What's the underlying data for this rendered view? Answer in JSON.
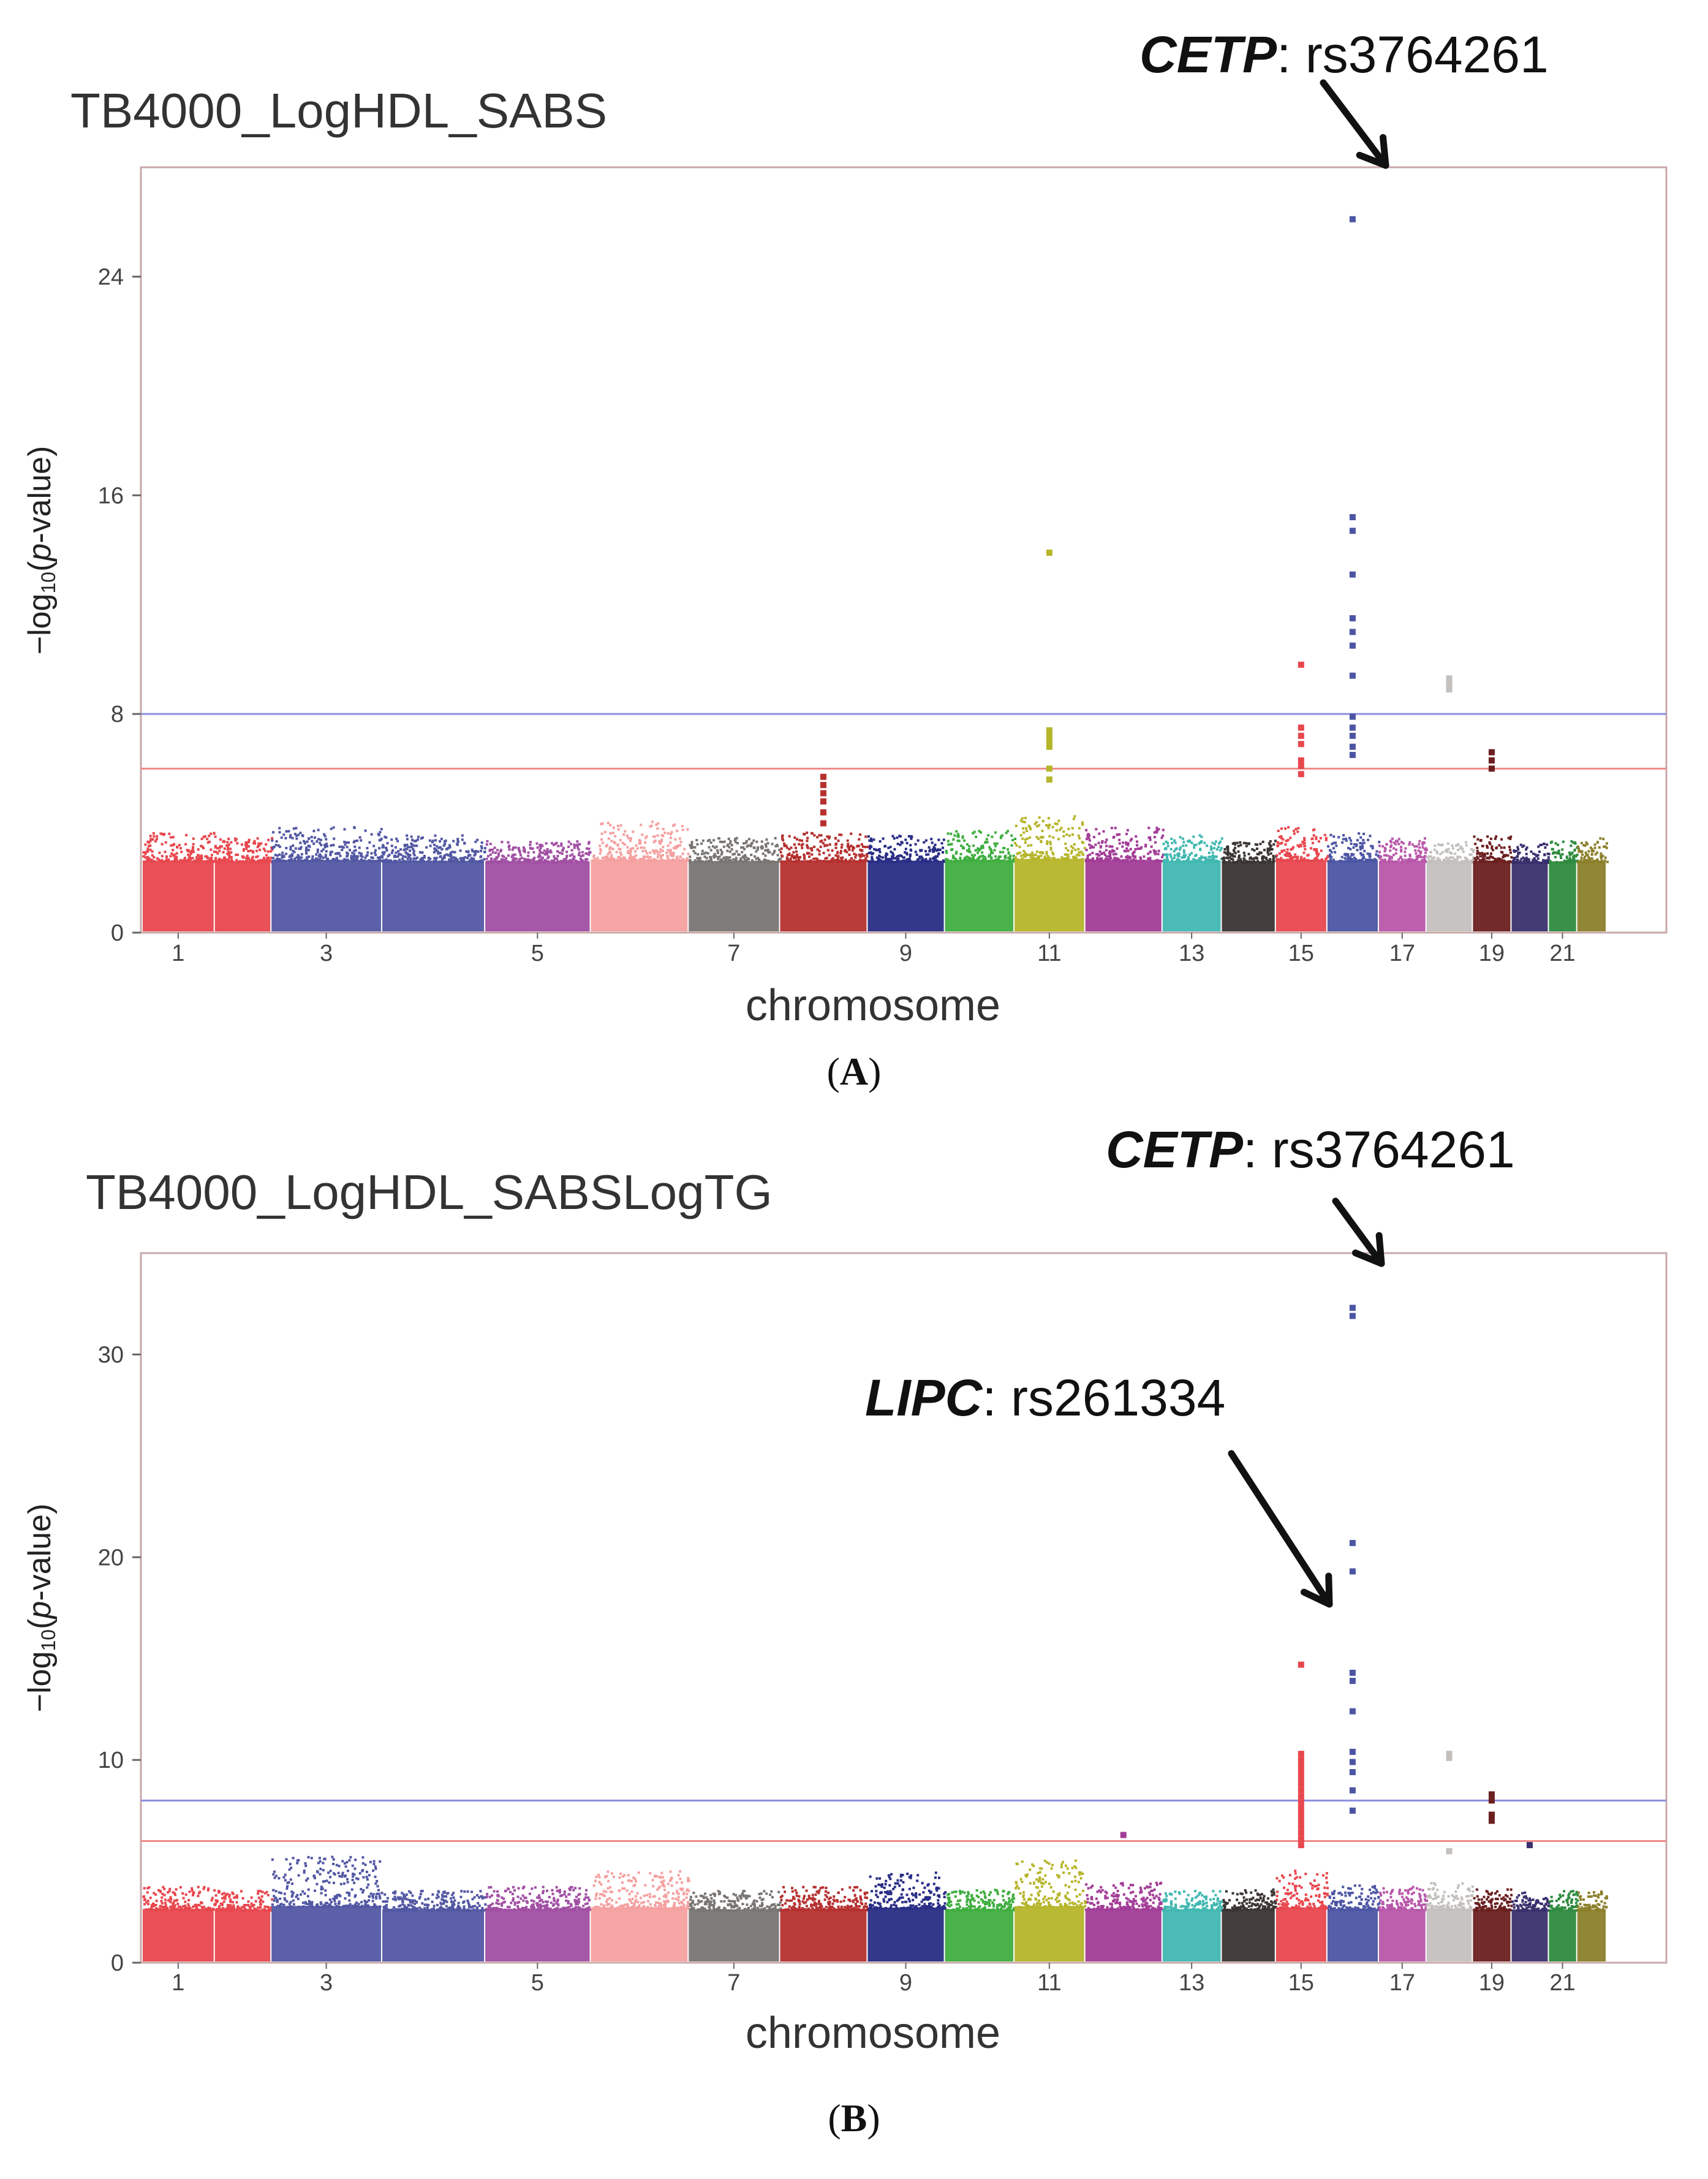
{
  "chart_data": [
    {
      "type": "scatter",
      "title": "TB4000_LogHDL_SABS",
      "panel_label": "A",
      "xlabel": "chromosome",
      "ylabel_prefix": "−log",
      "ylabel_sub": "10",
      "ylabel_open": "(",
      "ylabel_italic": "p",
      "ylabel_suffix": "-value)",
      "ylim": [
        0,
        28
      ],
      "yticks": [
        0,
        8,
        16,
        24
      ],
      "xtick_labels": [
        "1",
        "3",
        "5",
        "7",
        "9",
        "11",
        "13",
        "15",
        "17",
        "19",
        "21"
      ],
      "thresholds": [
        {
          "name": "genome-wide significance",
          "value": 8.0,
          "color": "#8e8ee0"
        },
        {
          "name": "suggestive",
          "value": 6.0,
          "color": "#f08a8a"
        }
      ],
      "chromosome_background_max": [
        3.7,
        3.5,
        3.9,
        3.6,
        3.4,
        4.1,
        3.5,
        3.7,
        3.6,
        3.8,
        4.3,
        3.9,
        3.6,
        3.4,
        3.9,
        3.7,
        3.5,
        3.4,
        3.6,
        3.3,
        3.4,
        3.5
      ],
      "highlight_points": [
        {
          "chromosome": 8,
          "values": [
            5.7,
            5.4,
            5.1,
            4.8,
            4.4,
            4.0
          ]
        },
        {
          "chromosome": 11,
          "values": [
            13.9,
            7.4,
            7.2,
            7.0,
            6.8,
            6.0,
            5.6
          ]
        },
        {
          "chromosome": 15,
          "values": [
            9.8,
            7.5,
            7.2,
            6.9,
            6.3,
            6.1,
            5.8
          ]
        },
        {
          "chromosome": 16,
          "values": [
            26.1,
            15.2,
            14.7,
            13.1,
            11.5,
            11.0,
            10.5,
            9.4,
            7.9,
            7.5,
            7.2,
            6.8,
            6.5
          ]
        },
        {
          "chromosome": 18,
          "values": [
            9.3,
            9.2,
            9.1,
            9.0,
            8.9
          ]
        },
        {
          "chromosome": 19,
          "values": [
            6.6,
            6.3,
            6.0
          ]
        }
      ],
      "annotations": [
        {
          "gene": "CETP",
          "snp": ": rs3764261",
          "chromosome": 16,
          "value": 26.1
        }
      ]
    },
    {
      "type": "scatter",
      "title": "TB4000_LogHDL_SABSLogTG",
      "panel_label": "B",
      "xlabel": "chromosome",
      "ylabel_prefix": "−log",
      "ylabel_sub": "10",
      "ylabel_open": "(",
      "ylabel_italic": "p",
      "ylabel_suffix": "-value)",
      "ylim": [
        0,
        35
      ],
      "yticks": [
        0,
        10,
        20,
        30
      ],
      "xtick_labels": [
        "1",
        "3",
        "5",
        "7",
        "9",
        "11",
        "13",
        "15",
        "17",
        "19",
        "21"
      ],
      "thresholds": [
        {
          "name": "genome-wide significance",
          "value": 8.0,
          "color": "#8e8ee0"
        },
        {
          "name": "suggestive",
          "value": 6.0,
          "color": "#f08a8a"
        }
      ],
      "chromosome_background_max": [
        3.8,
        3.6,
        5.3,
        3.6,
        3.8,
        4.6,
        3.6,
        3.8,
        4.5,
        3.7,
        5.2,
        4.0,
        3.6,
        3.7,
        4.6,
        3.9,
        3.8,
        4.0,
        3.7,
        3.6,
        3.6,
        3.6
      ],
      "highlight_points": [
        {
          "chromosome": 12,
          "values": [
            6.3
          ]
        },
        {
          "chromosome": 15,
          "values": [
            14.7,
            10.3,
            10.0,
            9.7,
            9.4,
            9.1,
            8.8,
            8.5,
            8.2,
            7.9,
            7.6,
            7.3,
            7.0,
            6.7,
            6.4,
            6.1,
            5.8
          ]
        },
        {
          "chromosome": 16,
          "values": [
            32.3,
            31.9,
            20.7,
            19.3,
            14.3,
            13.9,
            12.4,
            10.4,
            9.9,
            9.4,
            8.5,
            7.5
          ]
        },
        {
          "chromosome": 18,
          "values": [
            10.3,
            10.1,
            5.5
          ]
        },
        {
          "chromosome": 19,
          "values": [
            8.3,
            8.0,
            7.3,
            7.0
          ]
        },
        {
          "chromosome": 20,
          "values": [
            5.8
          ]
        }
      ],
      "annotations": [
        {
          "gene": "CETP",
          "snp": ": rs3764261",
          "chromosome": 16,
          "value": 32.3
        },
        {
          "gene": "LIPC",
          "snp": ": rs261334",
          "chromosome": 15,
          "value": 14.7
        }
      ]
    }
  ],
  "colors": {
    "chromosomes": [
      "#e8474e",
      "#e8474e",
      "#5257a3",
      "#5257a3",
      "#a14fa3",
      "#f5a0a0",
      "#797573",
      "#b5302f",
      "#292d85",
      "#3fae3f",
      "#b6b52b",
      "#a23d97",
      "#41b8b1",
      "#3a3533",
      "#e8474e",
      "#4c55a3",
      "#b857aa",
      "#c3c0bd",
      "#6b1f1f",
      "#3a2f6d",
      "#2e8b3f",
      "#8b7f2a"
    ],
    "axis": "#666666",
    "frame": "#c8a8a8",
    "arrow": "#111111"
  }
}
